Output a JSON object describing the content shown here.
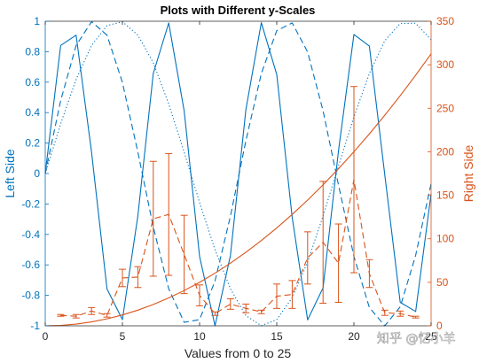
{
  "chart_data": {
    "type": "line",
    "title": "Plots with Different y-Scales",
    "xlabel": "Values from 0 to 25",
    "ylabel_left": "Left Side",
    "ylabel_right": "Right Side",
    "xlim": [
      0,
      25
    ],
    "ylim_left": [
      -1,
      1
    ],
    "ylim_right": [
      0,
      350
    ],
    "x_ticks": [
      0,
      5,
      10,
      15,
      20,
      25
    ],
    "y_left_ticks": [
      -1,
      -0.8,
      -0.6,
      -0.4,
      -0.2,
      0,
      0.2,
      0.4,
      0.6,
      0.8,
      1
    ],
    "y_right_ticks": [
      0,
      50,
      100,
      150,
      200,
      250,
      300,
      350
    ],
    "grid": false,
    "colors": {
      "left": "#0072BD",
      "right": "#D95319"
    },
    "series": [
      {
        "axis": "left",
        "style": "solid",
        "x": [
          0,
          1,
          2,
          3,
          4,
          5,
          6,
          7,
          8,
          9,
          10,
          11,
          12,
          13,
          14,
          15,
          16,
          17,
          18,
          19,
          20,
          21,
          22,
          23,
          24,
          25
        ],
        "y": [
          0,
          0.841,
          0.909,
          0.141,
          -0.757,
          -0.959,
          -0.279,
          0.657,
          0.989,
          0.412,
          -0.544,
          -1.0,
          -0.537,
          0.42,
          0.991,
          0.65,
          -0.288,
          -0.961,
          -0.751,
          0.15,
          0.913,
          0.837,
          -0.009,
          -0.846,
          -0.906,
          -0.132
        ]
      },
      {
        "axis": "left",
        "style": "dashed",
        "x": [
          0,
          1,
          2,
          3,
          4,
          5,
          6,
          7,
          8,
          9,
          10,
          11,
          12,
          13,
          14,
          15,
          16,
          17,
          18,
          19,
          20,
          21,
          22,
          23,
          24,
          25
        ],
        "y": [
          0,
          0.479,
          0.841,
          0.997,
          0.909,
          0.598,
          0.141,
          -0.351,
          -0.757,
          -0.977,
          -0.959,
          -0.706,
          -0.279,
          0.215,
          0.657,
          0.938,
          0.989,
          0.798,
          0.412,
          -0.075,
          -0.544,
          -0.88,
          -1.0,
          -0.875,
          -0.537,
          -0.066
        ]
      },
      {
        "axis": "left",
        "style": "dotted",
        "x": [
          0,
          1,
          2,
          3,
          4,
          5,
          6,
          7,
          8,
          9,
          10,
          11,
          12,
          13,
          14,
          15,
          16,
          17,
          18,
          19,
          20,
          21,
          22,
          23,
          24,
          25
        ],
        "y": [
          0,
          0.327,
          0.618,
          0.841,
          0.971,
          0.997,
          0.909,
          0.728,
          0.457,
          0.141,
          -0.19,
          -0.5,
          -0.757,
          -0.933,
          -0.999,
          -0.959,
          -0.816,
          -0.58,
          -0.279,
          0.05,
          0.372,
          0.657,
          0.872,
          0.985,
          0.987,
          0.879
        ]
      },
      {
        "axis": "right",
        "style": "solid",
        "x": [
          0,
          1,
          2,
          3,
          4,
          5,
          6,
          7,
          8,
          9,
          10,
          11,
          12,
          13,
          14,
          15,
          16,
          17,
          18,
          19,
          20,
          21,
          22,
          23,
          24,
          25
        ],
        "y": [
          0,
          0.5,
          2,
          4.5,
          8,
          12.5,
          18,
          24.5,
          32,
          40.5,
          50,
          60.5,
          72,
          84.5,
          98,
          112.5,
          128,
          144.5,
          162,
          180.5,
          200,
          220.5,
          242,
          264.5,
          288,
          312.5
        ]
      },
      {
        "axis": "right",
        "style": "dashed",
        "errorbars": true,
        "x": [
          1,
          2,
          3,
          4,
          5,
          6,
          7,
          8,
          9,
          10,
          11,
          12,
          13,
          14,
          15,
          16,
          17,
          18,
          19,
          20,
          21,
          22,
          23,
          24
        ],
        "y": [
          12,
          11,
          17,
          12,
          55,
          56,
          123,
          128,
          82,
          35,
          14,
          25,
          20,
          16,
          34,
          36,
          78,
          96,
          72,
          168,
          60,
          15,
          14,
          10
        ],
        "err": [
          1,
          2,
          4,
          2,
          10,
          12,
          66,
          70,
          45,
          12,
          2,
          6,
          5,
          2,
          14,
          16,
          30,
          70,
          45,
          107,
          16,
          3,
          3,
          1
        ]
      }
    ]
  },
  "watermark": "知乎 @忆小羊"
}
